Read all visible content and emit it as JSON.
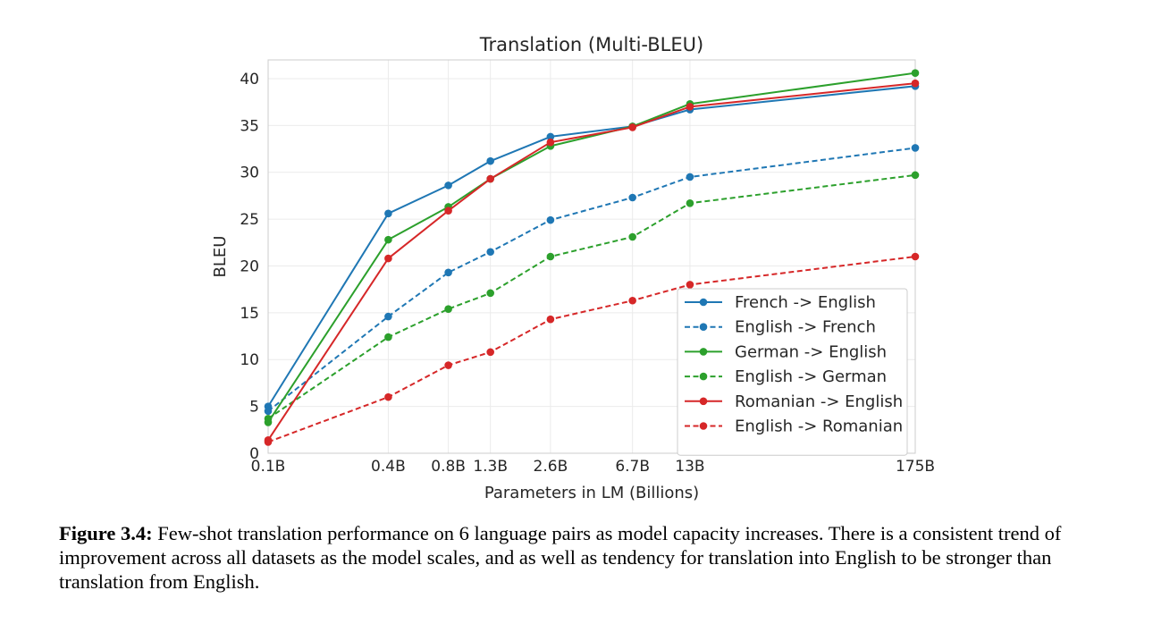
{
  "chart_data": {
    "type": "line",
    "title": "Translation (Multi-BLEU)",
    "xlabel": "Parameters in LM (Billions)",
    "ylabel": "BLEU",
    "x_scale": "log",
    "x": [
      0.1,
      0.4,
      0.8,
      1.3,
      2.6,
      6.7,
      13,
      175
    ],
    "x_tick_labels": [
      "0.1B",
      "0.4B",
      "0.8B",
      "1.3B",
      "2.6B",
      "6.7B",
      "13B",
      "175B"
    ],
    "ylim": [
      0,
      42
    ],
    "y_ticks": [
      0,
      5,
      10,
      15,
      20,
      25,
      30,
      35,
      40
    ],
    "grid": true,
    "legend_position": "lower-right",
    "series": [
      {
        "name": "French -> English",
        "color": "#1f77b4",
        "style": "solid",
        "values": [
          5.0,
          25.6,
          28.6,
          31.2,
          33.8,
          34.9,
          36.7,
          39.2
        ]
      },
      {
        "name": "English -> French",
        "color": "#1f77b4",
        "style": "dashed",
        "values": [
          4.5,
          14.6,
          19.3,
          21.5,
          24.9,
          27.3,
          29.5,
          32.6
        ]
      },
      {
        "name": "German -> English",
        "color": "#2ca02c",
        "style": "solid",
        "values": [
          3.3,
          22.8,
          26.3,
          29.3,
          32.8,
          34.9,
          37.3,
          40.6
        ]
      },
      {
        "name": "English -> German",
        "color": "#2ca02c",
        "style": "dashed",
        "values": [
          3.7,
          12.4,
          15.4,
          17.1,
          21.0,
          23.1,
          26.7,
          29.7
        ]
      },
      {
        "name": "Romanian -> English",
        "color": "#d62728",
        "style": "solid",
        "values": [
          1.4,
          20.8,
          25.9,
          29.3,
          33.2,
          34.8,
          37.0,
          39.5
        ]
      },
      {
        "name": "English -> Romanian",
        "color": "#d62728",
        "style": "dashed",
        "values": [
          1.2,
          6.0,
          9.4,
          10.8,
          14.3,
          16.3,
          18.0,
          21.0
        ]
      }
    ]
  },
  "caption": {
    "label": "Figure 3.4:",
    "text": " Few-shot translation performance on 6 language pairs as model capacity increases. There is a consistent trend of improvement across all datasets as the model scales, and as well as tendency for translation into English to be stronger than translation from English."
  }
}
